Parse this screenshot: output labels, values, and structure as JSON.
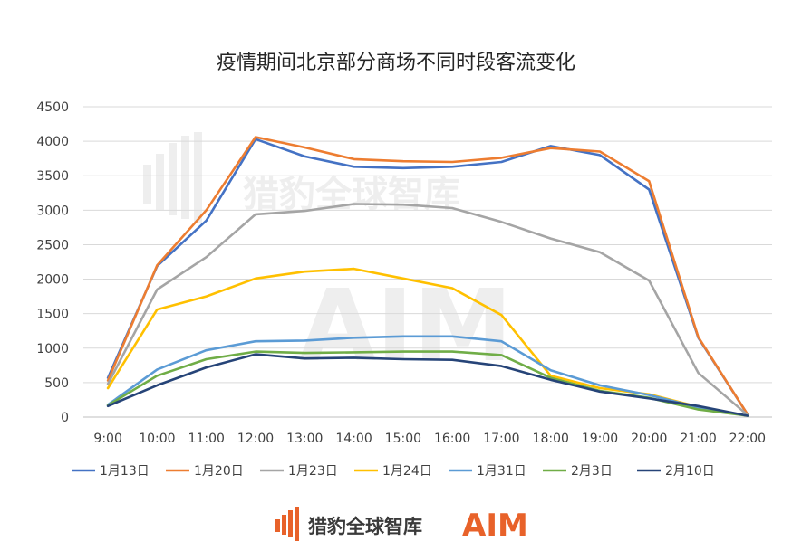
{
  "chart_data": {
    "type": "line",
    "title": "疫情期间北京部分商场不同时段客流变化",
    "xlabel": "",
    "ylabel": "",
    "ylim": [
      0,
      4500
    ],
    "yticks": [
      0,
      500,
      1000,
      1500,
      2000,
      2500,
      3000,
      3500,
      4000,
      4500
    ],
    "grid": true,
    "legend_position": "bottom",
    "categories": [
      "9:00",
      "10:00",
      "11:00",
      "12:00",
      "13:00",
      "14:00",
      "15:00",
      "16:00",
      "17:00",
      "18:00",
      "19:00",
      "20:00",
      "21:00",
      "22:00"
    ],
    "series": [
      {
        "name": "1月13日",
        "color": "#4472c4",
        "values": [
          570,
          2190,
          2850,
          4030,
          3780,
          3630,
          3610,
          3630,
          3700,
          3930,
          3800,
          3300,
          1150,
          40
        ]
      },
      {
        "name": "1月20日",
        "color": "#ed7d31",
        "values": [
          530,
          2200,
          3000,
          4060,
          3910,
          3740,
          3710,
          3700,
          3760,
          3900,
          3850,
          3420,
          1160,
          40
        ]
      },
      {
        "name": "1月23日",
        "color": "#a5a5a5",
        "values": [
          480,
          1850,
          2320,
          2940,
          2990,
          3090,
          3080,
          3030,
          2830,
          2590,
          2390,
          1980,
          640,
          30
        ]
      },
      {
        "name": "1月24日",
        "color": "#ffc000",
        "values": [
          420,
          1560,
          1750,
          2010,
          2110,
          2150,
          2010,
          1870,
          1480,
          600,
          420,
          330,
          150,
          20
        ]
      },
      {
        "name": "1月31日",
        "color": "#5b9bd5",
        "values": [
          180,
          690,
          970,
          1100,
          1110,
          1150,
          1170,
          1170,
          1100,
          680,
          460,
          320,
          140,
          20
        ]
      },
      {
        "name": "2月3日",
        "color": "#70ad47",
        "values": [
          170,
          600,
          840,
          950,
          930,
          940,
          950,
          950,
          900,
          570,
          380,
          280,
          110,
          20
        ]
      },
      {
        "name": "2月10日",
        "color": "#264478",
        "values": [
          160,
          460,
          720,
          910,
          850,
          860,
          840,
          830,
          740,
          540,
          370,
          270,
          160,
          20
        ]
      }
    ]
  },
  "watermark": {
    "brand": "猎豹全球智库",
    "aim": "AIM"
  },
  "footer": {
    "brand": "猎豹全球智库",
    "aim": "AIM"
  }
}
